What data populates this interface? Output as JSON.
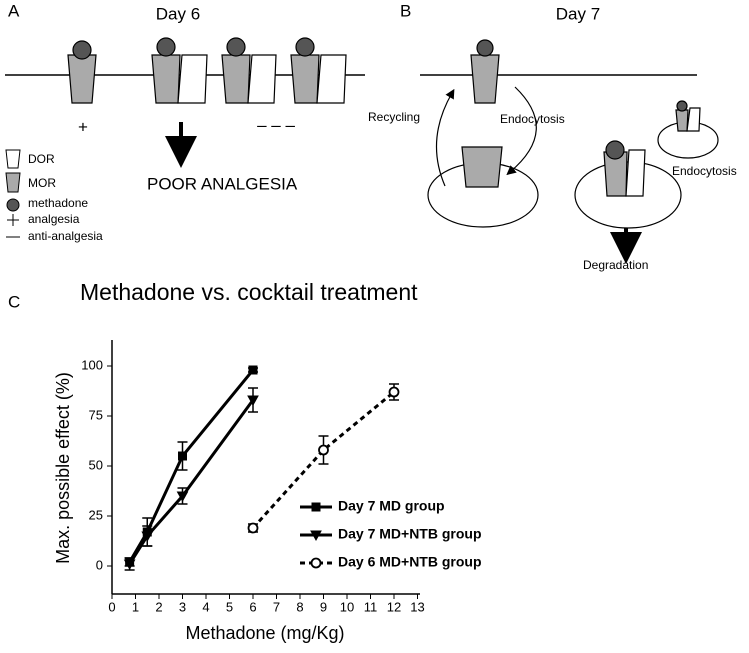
{
  "panel_a": {
    "label": "A",
    "title": "Day 6",
    "plus": "+",
    "dashes": "– – –",
    "outcome": "POOR ANALGESIA",
    "legend": [
      "DOR",
      "MOR",
      "methadone",
      "analgesia",
      "anti-analgesia"
    ]
  },
  "panel_b": {
    "label": "B",
    "title": "Day 7",
    "recycling": "Recycling",
    "endocytosis_1": "Endocytosis",
    "endocytosis_2": "Endocytosis",
    "degradation": "Degradation"
  },
  "chart_data": {
    "type": "line",
    "panel_label": "C",
    "title": "Methadone vs. cocktail treatment",
    "x_label": "Methadone (mg/Kg)",
    "y_label": "Max. possible effect (%)",
    "xlim": [
      0,
      13
    ],
    "xticks": [
      0,
      1,
      2,
      3,
      4,
      5,
      6,
      7,
      8,
      9,
      10,
      11,
      12,
      13
    ],
    "ylim": [
      -14,
      113
    ],
    "yticks": [
      0,
      25,
      50,
      75,
      100
    ],
    "series": [
      {
        "name": "Day 7 MD group",
        "color": "#000000",
        "marker": "square",
        "linestyle": "solid",
        "x": [
          0.75,
          1.5,
          3,
          6
        ],
        "values": [
          2,
          17,
          55,
          98
        ],
        "errors": [
          2,
          7,
          7,
          1
        ]
      },
      {
        "name": "Day 7 MD+NTB group",
        "color": "#000000",
        "marker": "triangle-down",
        "linestyle": "solid",
        "x": [
          0.75,
          1.5,
          3,
          6
        ],
        "values": [
          1,
          15,
          35,
          83
        ],
        "errors": [
          3,
          5,
          4,
          6
        ]
      },
      {
        "name": "Day 6 MD+NTB group",
        "color": "#000000",
        "marker": "circle-open",
        "linestyle": "dashed",
        "x": [
          6,
          9,
          12
        ],
        "values": [
          19,
          58,
          87
        ],
        "errors": [
          2,
          7,
          4
        ]
      }
    ]
  }
}
